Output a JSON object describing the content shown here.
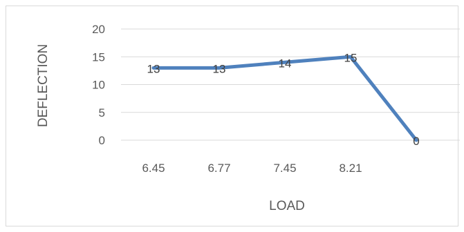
{
  "chart_data": {
    "type": "line",
    "title": "",
    "xlabel": "LOAD",
    "ylabel": "DEFLECTION",
    "categories": [
      "6.45",
      "6.77",
      "7.45",
      "8.21",
      ""
    ],
    "series": [
      {
        "values": [
          13,
          13,
          14,
          15,
          0
        ]
      }
    ],
    "data_labels": [
      "13",
      "13",
      "14",
      "15",
      "0"
    ],
    "yticks": [
      "0",
      "5",
      "10",
      "15",
      "20"
    ],
    "ylim": [
      0,
      20
    ],
    "grid": true,
    "legend": "none",
    "colors": {
      "line": "#4f81bd",
      "grid": "#d9d9d9",
      "text": "#595959",
      "border": "#d9d9d9"
    }
  }
}
